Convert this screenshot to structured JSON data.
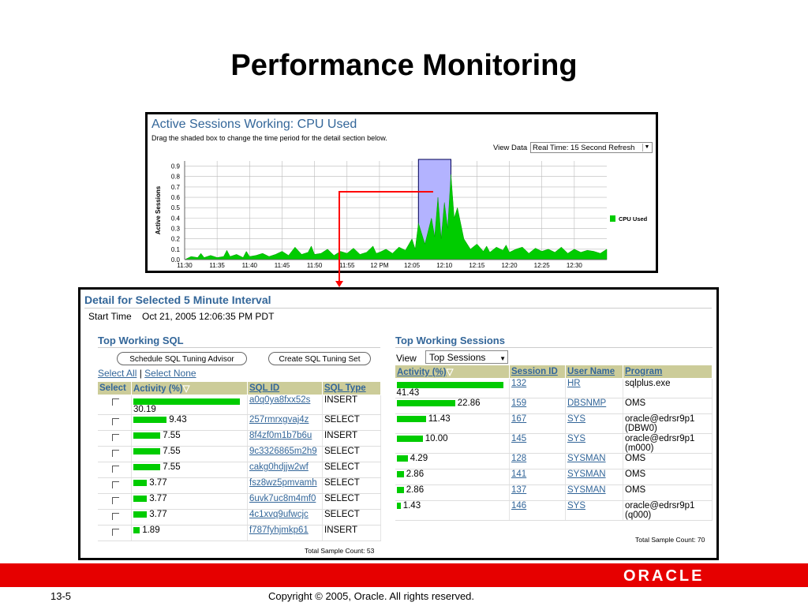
{
  "slide": {
    "title": "Performance Monitoring",
    "page_number": "13-5",
    "copyright": "Copyright © 2005, Oracle.  All rights reserved.",
    "logo": "ORACLE"
  },
  "top_chart": {
    "title": "Active Sessions Working: CPU Used",
    "subtitle": "Drag the shaded box to change the time period for the detail section below.",
    "view_data_label": "View Data",
    "view_data_value": "Real Time: 15 Second Refresh",
    "ylabel": "Active Sessions",
    "legend": "CPU Used",
    "colors": {
      "series": "#00cc00",
      "selection": "#b3b3ff",
      "grid": "#bbbbbb",
      "connector": "#ff0000"
    }
  },
  "chart_data": {
    "type": "area",
    "title": "Active Sessions Working: CPU Used",
    "ylabel": "Active Sessions",
    "xlabel": "",
    "x_ticks": [
      "11:30",
      "11:35",
      "11:40",
      "11:45",
      "11:50",
      "11:55",
      "12 PM",
      "12:05",
      "12:10",
      "12:15",
      "12:20",
      "12:25",
      "12:30"
    ],
    "y_ticks": [
      "0.0",
      "0.1",
      "0.2",
      "0.3",
      "0.4",
      "0.5",
      "0.6",
      "0.7",
      "0.8",
      "0.9"
    ],
    "ylim": [
      0,
      0.95
    ],
    "grid": true,
    "legend_position": "right",
    "selection_range": [
      "12:06",
      "12:11"
    ],
    "series": [
      {
        "name": "CPU Used",
        "x_minutes_from_1130": [
          0,
          1,
          2,
          2.5,
          3,
          4,
          5,
          6,
          6.5,
          7,
          8,
          9,
          9.5,
          10,
          11,
          12,
          13,
          14,
          15,
          16,
          17,
          18,
          19,
          19.5,
          20,
          21,
          22,
          23,
          24,
          25,
          26,
          27,
          28,
          29,
          29.5,
          30,
          31,
          32,
          33,
          34,
          35,
          35.5,
          36,
          37,
          38,
          38.5,
          39,
          39.5,
          40,
          40.5,
          41,
          41.5,
          42,
          43,
          44,
          45,
          46,
          46.5,
          47,
          48,
          49,
          49.5,
          50,
          51,
          52,
          53,
          54,
          55,
          56,
          57,
          58,
          59,
          60,
          61,
          62,
          63,
          64,
          65
        ],
        "values": [
          0,
          0.03,
          0.02,
          0.06,
          0.02,
          0.04,
          0.02,
          0.03,
          0.09,
          0.03,
          0.05,
          0.02,
          0.08,
          0.03,
          0.04,
          0.06,
          0.03,
          0.05,
          0.08,
          0.04,
          0.12,
          0.05,
          0.07,
          0.13,
          0.05,
          0.06,
          0.1,
          0.04,
          0.08,
          0.06,
          0.11,
          0.05,
          0.07,
          0.13,
          0.06,
          0.07,
          0.1,
          0.06,
          0.12,
          0.09,
          0.2,
          0.1,
          0.35,
          0.15,
          0.4,
          0.22,
          0.6,
          0.2,
          0.55,
          0.3,
          0.82,
          0.4,
          0.5,
          0.2,
          0.1,
          0.15,
          0.08,
          0.13,
          0.07,
          0.12,
          0.09,
          0.14,
          0.07,
          0.1,
          0.12,
          0.06,
          0.11,
          0.08,
          0.1,
          0.07,
          0.12,
          0.06,
          0.1,
          0.07,
          0.09,
          0.08,
          0.06,
          0.1
        ]
      }
    ]
  },
  "detail": {
    "title": "Detail for Selected 5 Minute Interval",
    "start_time_label": "Start Time",
    "start_time_value": "Oct 21, 2005 12:06:35 PM PDT",
    "top_sql": {
      "title": "Top Working SQL",
      "buttons": [
        "Schedule SQL Tuning Advisor",
        "Create SQL Tuning Set"
      ],
      "select_all": "Select All",
      "separator": "|",
      "select_none": "Select None",
      "headers": [
        "Select",
        "Activity (%)",
        "SQL ID",
        "SQL Type"
      ],
      "sort_icon": "▽",
      "rows": [
        {
          "activity": "30.19",
          "bar": 30.19,
          "sql_id": "a0q0ya8fxx52s",
          "sql_type": "INSERT"
        },
        {
          "activity": "9.43",
          "bar": 9.43,
          "sql_id": "257rmrxgvaj4z",
          "sql_type": "SELECT"
        },
        {
          "activity": "7.55",
          "bar": 7.55,
          "sql_id": "8f4zf0m1b7b6u",
          "sql_type": "INSERT"
        },
        {
          "activity": "7.55",
          "bar": 7.55,
          "sql_id": "9c3326865m2h9",
          "sql_type": "SELECT"
        },
        {
          "activity": "7.55",
          "bar": 7.55,
          "sql_id": "cakg0hdjjw2wf",
          "sql_type": "SELECT"
        },
        {
          "activity": "3.77",
          "bar": 3.77,
          "sql_id": "fsz8wz5pmvamh",
          "sql_type": "SELECT"
        },
        {
          "activity": "3.77",
          "bar": 3.77,
          "sql_id": "6uvk7uc8m4mf0",
          "sql_type": "SELECT"
        },
        {
          "activity": "3.77",
          "bar": 3.77,
          "sql_id": "4c1xvq9ufwcjc",
          "sql_type": "SELECT"
        },
        {
          "activity": "1.89",
          "bar": 1.89,
          "sql_id": "f787fyhjmkp61",
          "sql_type": "INSERT"
        }
      ],
      "total": "Total Sample Count: 53"
    },
    "top_sessions": {
      "title": "Top Working Sessions",
      "view_label": "View",
      "view_value": "Top Sessions",
      "headers": [
        "Activity (%)",
        "Session ID",
        "User Name",
        "Program"
      ],
      "sort_icon": "▽",
      "rows": [
        {
          "activity": "41.43",
          "bar": 41.43,
          "session_id": "132",
          "user": "HR",
          "program": "sqlplus.exe",
          "program2": ""
        },
        {
          "activity": "22.86",
          "bar": 22.86,
          "session_id": "159",
          "user": "DBSNMP",
          "program": "OMS",
          "program2": ""
        },
        {
          "activity": "11.43",
          "bar": 11.43,
          "session_id": "167",
          "user": "SYS",
          "program": "oracle@edrsr9p1",
          "program2": "(DBW0)"
        },
        {
          "activity": "10.00",
          "bar": 10.0,
          "session_id": "145",
          "user": "SYS",
          "program": "oracle@edrsr9p1",
          "program2": "(m000)"
        },
        {
          "activity": "4.29",
          "bar": 4.29,
          "session_id": "128",
          "user": "SYSMAN",
          "program": "OMS",
          "program2": ""
        },
        {
          "activity": "2.86",
          "bar": 2.86,
          "session_id": "141",
          "user": "SYSMAN",
          "program": "OMS",
          "program2": ""
        },
        {
          "activity": "2.86",
          "bar": 2.86,
          "session_id": "137",
          "user": "SYSMAN",
          "program": "OMS",
          "program2": ""
        },
        {
          "activity": "1.43",
          "bar": 1.43,
          "session_id": "146",
          "user": "SYS",
          "program": "oracle@edrsr9p1",
          "program2": "(q000)"
        }
      ],
      "total": "Total Sample Count: 70"
    }
  }
}
